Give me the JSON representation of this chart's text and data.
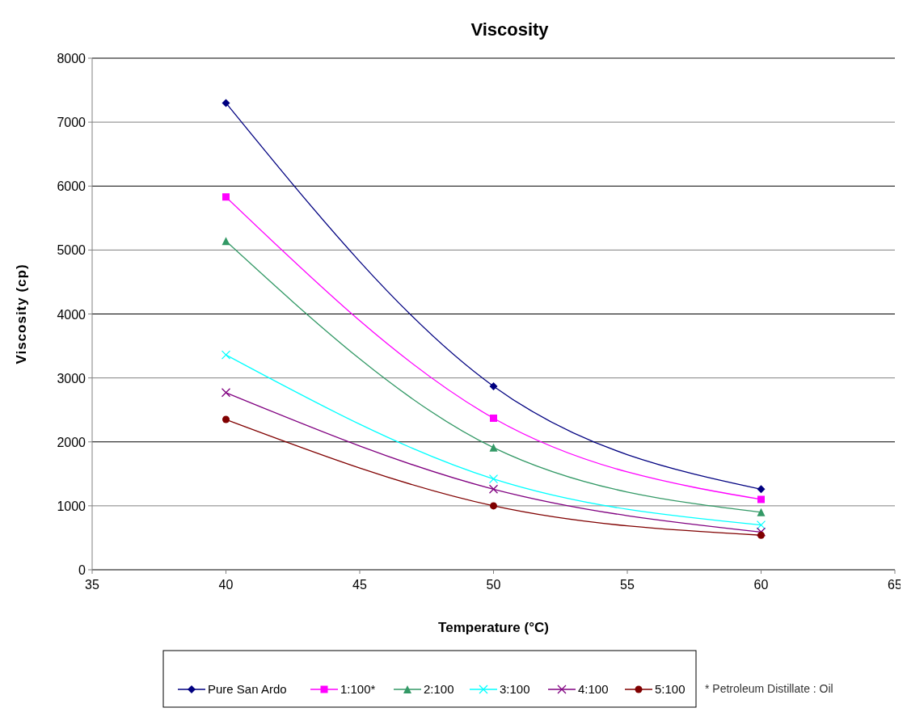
{
  "chart_data": {
    "type": "line",
    "title": "Viscosity",
    "xlabel": "Temperature (°C)",
    "ylabel": "Viscosity (cp)",
    "x": [
      40,
      50,
      60
    ],
    "series": [
      {
        "name": "Pure San Ardo",
        "color": "#000080",
        "marker": "diamond",
        "values": [
          7300,
          2870,
          1260
        ]
      },
      {
        "name": "1:100*",
        "color": "#ff00ff",
        "marker": "square",
        "values": [
          5830,
          2370,
          1100
        ]
      },
      {
        "name": "2:100",
        "color": "#339966",
        "marker": "triangle",
        "values": [
          5140,
          1910,
          900
        ]
      },
      {
        "name": "3:100",
        "color": "#00ffff",
        "marker": "cross",
        "values": [
          3360,
          1420,
          700
        ]
      },
      {
        "name": "4:100",
        "color": "#800080",
        "marker": "cross",
        "values": [
          2770,
          1260,
          590
        ]
      },
      {
        "name": "5:100",
        "color": "#800000",
        "marker": "circle",
        "values": [
          2350,
          1000,
          540
        ]
      }
    ],
    "xlim": [
      35,
      65
    ],
    "xticks": [
      35,
      40,
      45,
      50,
      55,
      60,
      65
    ],
    "ylim": [
      0,
      8000
    ],
    "yticks": [
      0,
      1000,
      2000,
      3000,
      4000,
      5000,
      6000,
      7000,
      8000
    ],
    "grid": "y",
    "legend": "bottom",
    "line_style": "solid",
    "annotations": [
      "* Petroleum Distillate : Oil"
    ]
  }
}
